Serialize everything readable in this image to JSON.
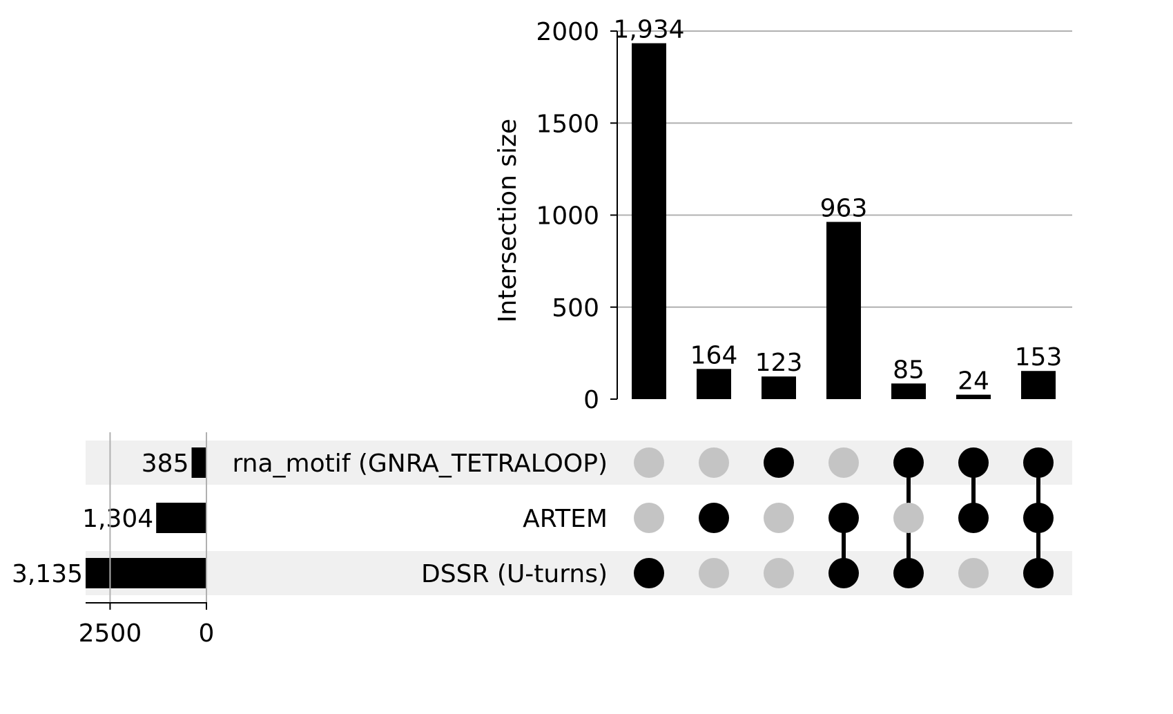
{
  "chart_data": {
    "type": "upset",
    "intersection_axis": {
      "ylabel": "Intersection size",
      "ylim": [
        0,
        2000
      ],
      "yticks": [
        0,
        500,
        1000,
        1500,
        2000
      ],
      "grid": true
    },
    "sets": [
      {
        "name": "rna_motif (GNRA_TETRALOOP)",
        "size": 385,
        "size_label": "385"
      },
      {
        "name": "ARTEM",
        "size": 1304,
        "size_label": "1,304"
      },
      {
        "name": "DSSR (U-turns)",
        "size": 3135,
        "size_label": "3,135"
      }
    ],
    "set_size_axis": {
      "xticks": [
        2500,
        0
      ],
      "xlim": [
        3135,
        0
      ]
    },
    "intersections": [
      {
        "members": [
          false,
          false,
          true
        ],
        "size": 1934,
        "label": "1,934"
      },
      {
        "members": [
          false,
          true,
          false
        ],
        "size": 164,
        "label": "164"
      },
      {
        "members": [
          true,
          false,
          false
        ],
        "size": 123,
        "label": "123"
      },
      {
        "members": [
          false,
          true,
          true
        ],
        "size": 963,
        "label": "963"
      },
      {
        "members": [
          true,
          false,
          true
        ],
        "size": 85,
        "label": "85"
      },
      {
        "members": [
          true,
          true,
          false
        ],
        "size": 24,
        "label": "24"
      },
      {
        "members": [
          true,
          true,
          true
        ],
        "size": 153,
        "label": "153"
      }
    ],
    "colors": {
      "bar": "#000000",
      "dot_active": "#000000",
      "dot_inactive": "#c4c4c4",
      "grid": "#b0b0b0",
      "row_shade": "#f0f0f0"
    }
  }
}
